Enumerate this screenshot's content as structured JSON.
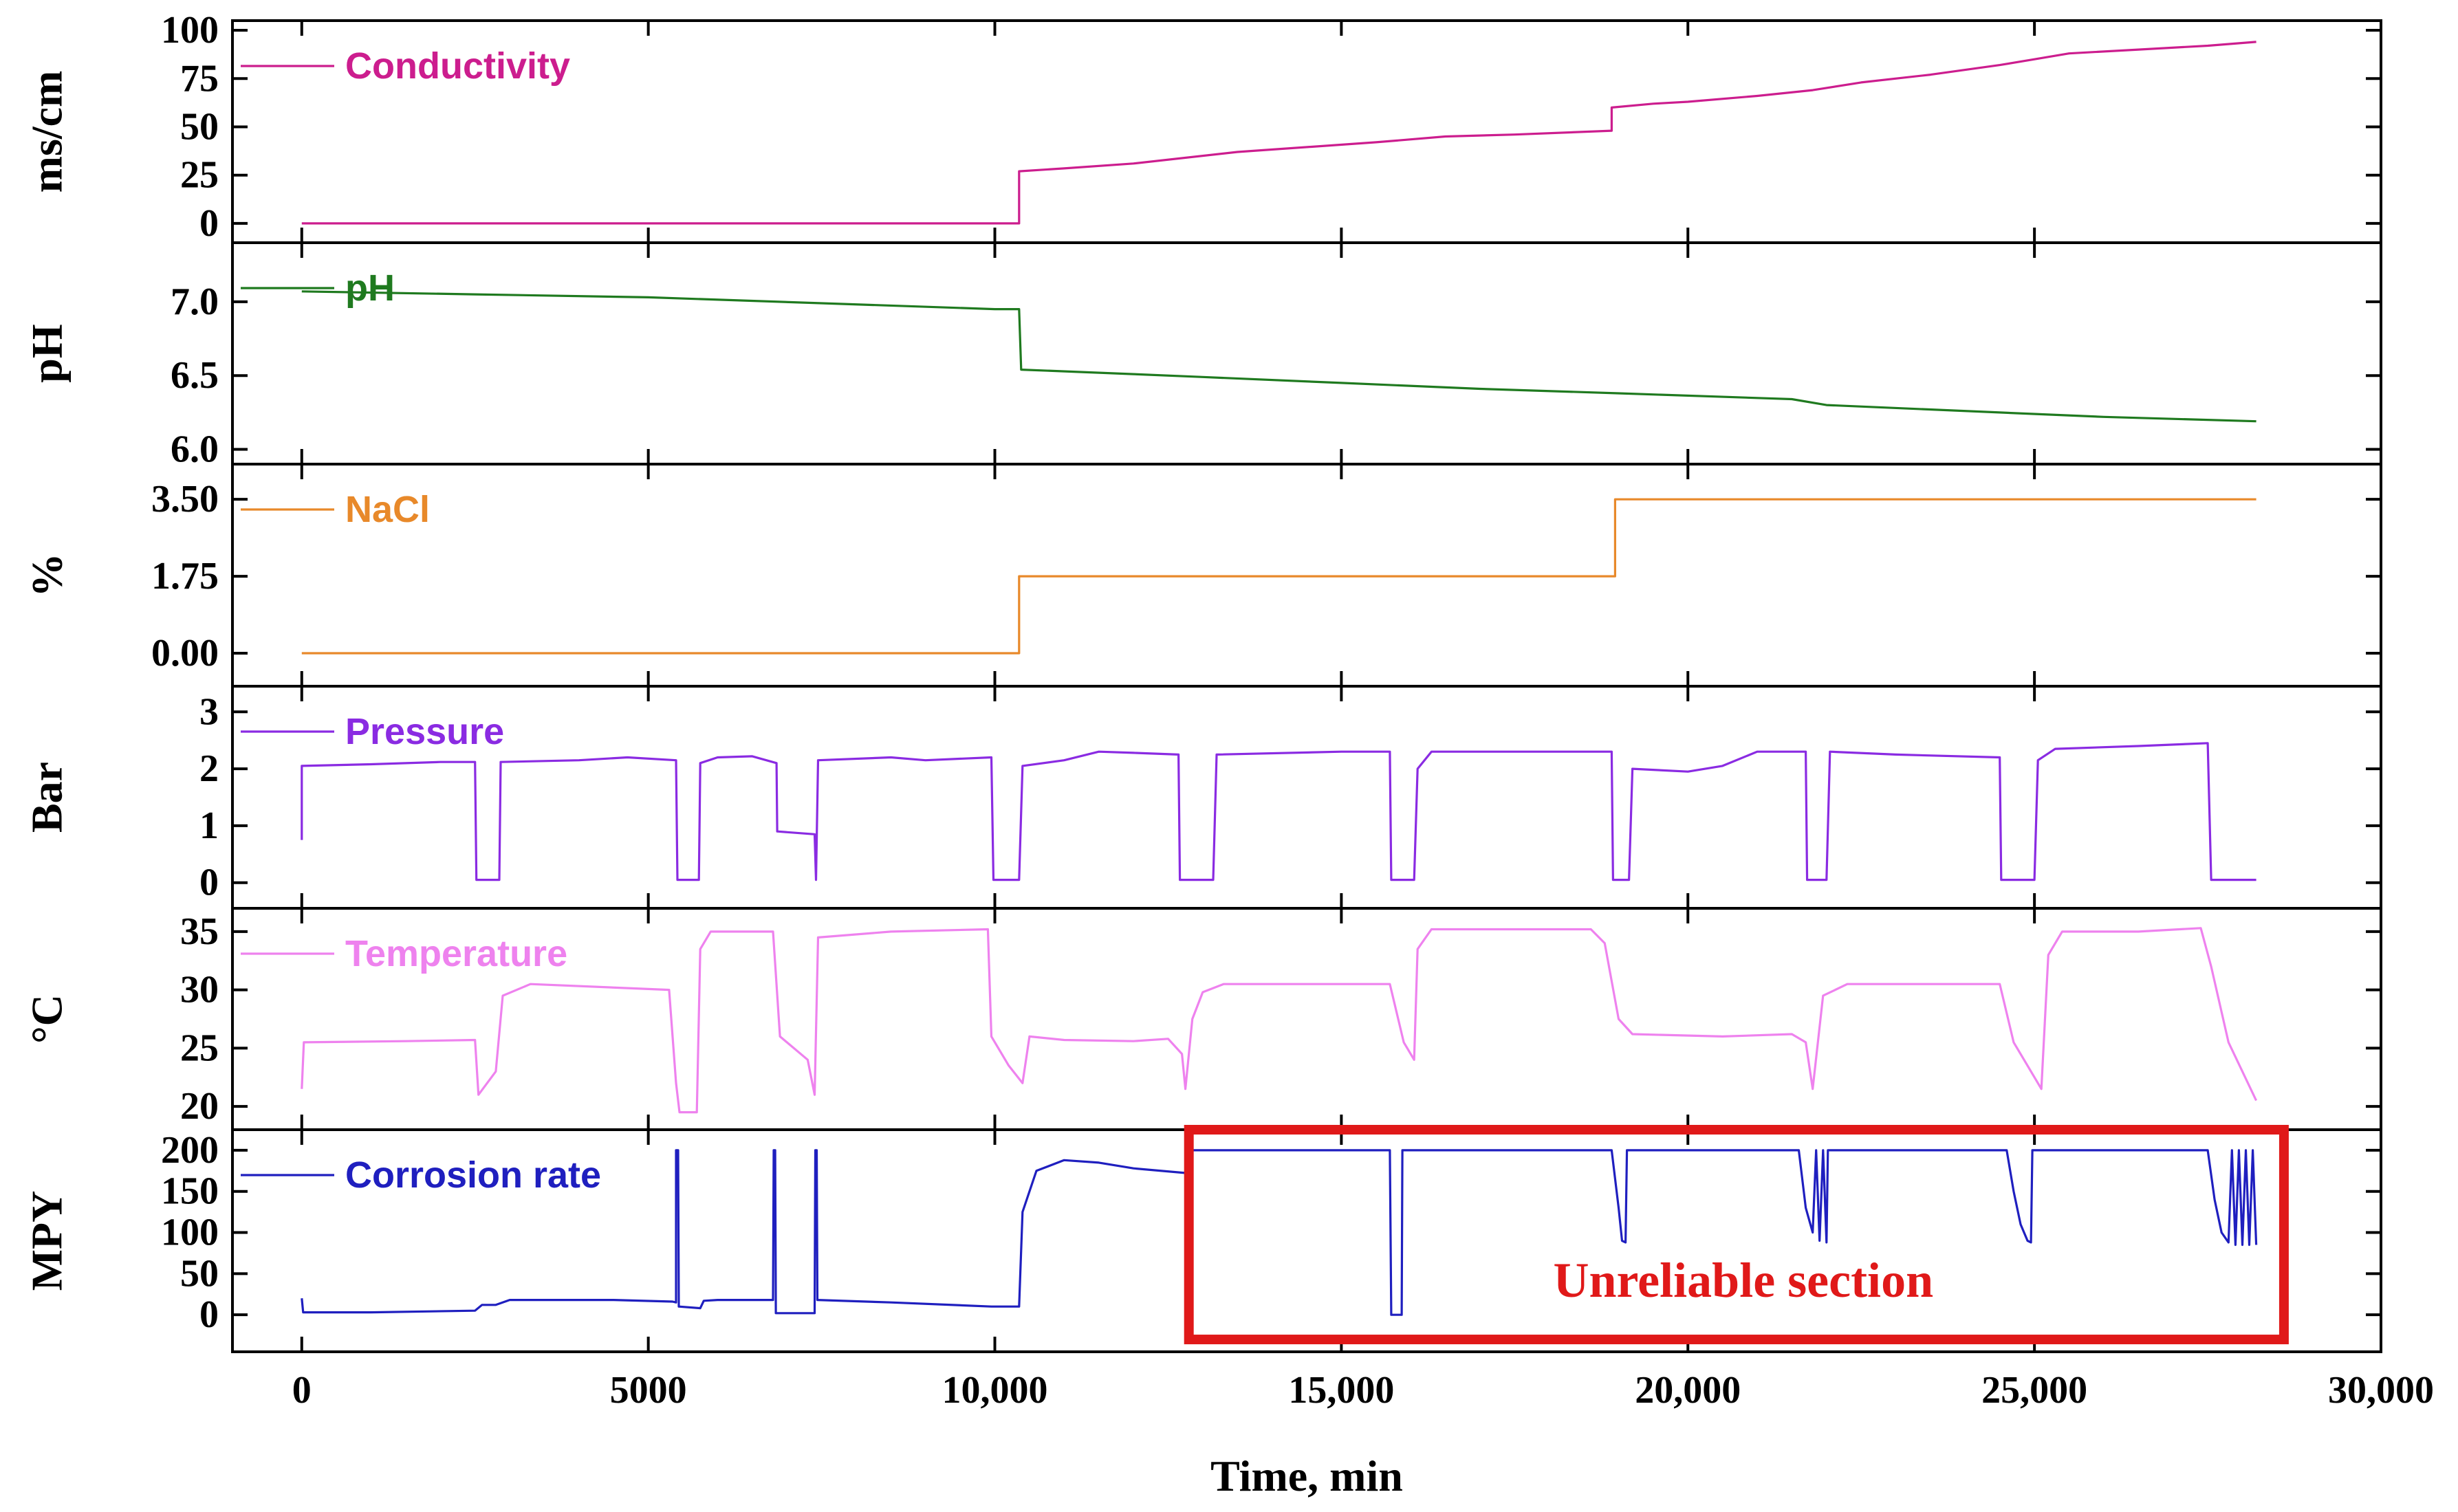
{
  "chart_data": {
    "type": "line",
    "xlabel": "Time, min",
    "xlim": [
      -1000,
      30000
    ],
    "x_ticks": [
      0,
      5000,
      10000,
      15000,
      20000,
      25000,
      30000
    ],
    "x_tick_labels": [
      "0",
      "5000",
      "10,000",
      "15,000",
      "20,000",
      "25,000",
      "30,000"
    ],
    "panels": [
      {
        "key": "conductivity",
        "ylabel": "ms/cm",
        "legend": "Conductivity",
        "color": "#cc1d8e",
        "ylim": [
          -10,
          105
        ],
        "ticks": [
          0,
          25,
          50,
          75,
          100
        ],
        "tick_labels": [
          "0",
          "25",
          "50",
          "75",
          "100"
        ],
        "series": [
          [
            0,
            0
          ],
          [
            10350,
            0
          ],
          [
            10350,
            27
          ],
          [
            11000,
            28.5
          ],
          [
            12000,
            31
          ],
          [
            13500,
            37
          ],
          [
            15500,
            42
          ],
          [
            16500,
            45
          ],
          [
            17500,
            46
          ],
          [
            18900,
            48
          ],
          [
            18900,
            60
          ],
          [
            19500,
            62
          ],
          [
            20000,
            63
          ],
          [
            21000,
            66
          ],
          [
            21800,
            69
          ],
          [
            22500,
            73
          ],
          [
            23500,
            77
          ],
          [
            24500,
            82
          ],
          [
            25000,
            85
          ],
          [
            25500,
            88
          ],
          [
            26500,
            90
          ],
          [
            27500,
            92
          ],
          [
            28200,
            94
          ]
        ]
      },
      {
        "key": "ph",
        "ylabel": "pH",
        "legend": "pH",
        "color": "#1f7a1f",
        "ylim": [
          5.9,
          7.4
        ],
        "ticks": [
          6.0,
          6.5,
          7.0
        ],
        "tick_labels": [
          "6.0",
          "6.5",
          "7.0"
        ],
        "series": [
          [
            0,
            7.07
          ],
          [
            2500,
            7.05
          ],
          [
            5000,
            7.03
          ],
          [
            7500,
            6.99
          ],
          [
            10000,
            6.95
          ],
          [
            10350,
            6.95
          ],
          [
            10380,
            6.54
          ],
          [
            12000,
            6.51
          ],
          [
            13000,
            6.49
          ],
          [
            15000,
            6.45
          ],
          [
            17000,
            6.41
          ],
          [
            19000,
            6.38
          ],
          [
            21500,
            6.34
          ],
          [
            22000,
            6.3
          ],
          [
            24500,
            6.25
          ],
          [
            26000,
            6.22
          ],
          [
            28200,
            6.19
          ]
        ]
      },
      {
        "key": "nacl",
        "ylabel": "%",
        "legend": "NaCl",
        "color": "#e8892a",
        "ylim": [
          -0.75,
          4.3
        ],
        "ticks": [
          0,
          1.75,
          3.5
        ],
        "tick_labels": [
          "0.00",
          "1.75",
          "3.50"
        ],
        "series": [
          [
            0,
            0
          ],
          [
            10350,
            0
          ],
          [
            10350,
            1.75
          ],
          [
            18950,
            1.75
          ],
          [
            18950,
            3.5
          ],
          [
            28200,
            3.5
          ]
        ]
      },
      {
        "key": "pressure",
        "ylabel": "Bar",
        "legend": "Pressure",
        "color": "#8a2be2",
        "ylim": [
          -0.45,
          3.45
        ],
        "ticks": [
          0,
          1,
          2,
          3
        ],
        "tick_labels": [
          "0",
          "1",
          "2",
          "3"
        ],
        "series": [
          [
            0,
            0.75
          ],
          [
            0,
            2.05
          ],
          [
            1000,
            2.08
          ],
          [
            2000,
            2.12
          ],
          [
            2500,
            2.12
          ],
          [
            2520,
            0.05
          ],
          [
            2850,
            0.05
          ],
          [
            2870,
            2.12
          ],
          [
            4000,
            2.15
          ],
          [
            4700,
            2.2
          ],
          [
            5400,
            2.15
          ],
          [
            5420,
            0.05
          ],
          [
            5730,
            0.05
          ],
          [
            5750,
            2.1
          ],
          [
            6000,
            2.2
          ],
          [
            6500,
            2.22
          ],
          [
            6850,
            2.1
          ],
          [
            6860,
            0.9
          ],
          [
            7400,
            0.85
          ],
          [
            7420,
            0.05
          ],
          [
            7450,
            2.15
          ],
          [
            8500,
            2.2
          ],
          [
            9000,
            2.15
          ],
          [
            9950,
            2.2
          ],
          [
            9980,
            0.05
          ],
          [
            10350,
            0.05
          ],
          [
            10400,
            2.05
          ],
          [
            11000,
            2.15
          ],
          [
            11500,
            2.3
          ],
          [
            12000,
            2.28
          ],
          [
            12650,
            2.25
          ],
          [
            12670,
            0.05
          ],
          [
            13150,
            0.05
          ],
          [
            13200,
            2.25
          ],
          [
            15000,
            2.3
          ],
          [
            15700,
            2.3
          ],
          [
            15720,
            0.05
          ],
          [
            16050,
            0.05
          ],
          [
            16100,
            2.0
          ],
          [
            16300,
            2.3
          ],
          [
            17500,
            2.3
          ],
          [
            18900,
            2.3
          ],
          [
            18920,
            0.05
          ],
          [
            19150,
            0.05
          ],
          [
            19200,
            2.0
          ],
          [
            20000,
            1.95
          ],
          [
            20500,
            2.05
          ],
          [
            21000,
            2.3
          ],
          [
            21700,
            2.3
          ],
          [
            21720,
            0.05
          ],
          [
            22000,
            0.05
          ],
          [
            22050,
            2.3
          ],
          [
            23000,
            2.25
          ],
          [
            24500,
            2.2
          ],
          [
            24520,
            0.05
          ],
          [
            25000,
            0.05
          ],
          [
            25050,
            2.15
          ],
          [
            25300,
            2.35
          ],
          [
            26500,
            2.4
          ],
          [
            27500,
            2.45
          ],
          [
            27550,
            0.05
          ],
          [
            28200,
            0.05
          ]
        ]
      },
      {
        "key": "temperature",
        "ylabel": "°C",
        "legend": "Temperature",
        "color": "#ee82ee",
        "ylim": [
          18,
          37
        ],
        "ticks": [
          20,
          25,
          30,
          35
        ],
        "tick_labels": [
          "20",
          "25",
          "30",
          "35"
        ],
        "series": [
          [
            0,
            21.5
          ],
          [
            30,
            25.5
          ],
          [
            1500,
            25.6
          ],
          [
            2500,
            25.7
          ],
          [
            2550,
            21
          ],
          [
            2800,
            23
          ],
          [
            2900,
            29.5
          ],
          [
            3300,
            30.5
          ],
          [
            5300,
            30.0
          ],
          [
            5400,
            22
          ],
          [
            5450,
            19.5
          ],
          [
            5700,
            19.5
          ],
          [
            5750,
            33.5
          ],
          [
            5900,
            35
          ],
          [
            6800,
            35
          ],
          [
            6900,
            26
          ],
          [
            7300,
            24
          ],
          [
            7400,
            21
          ],
          [
            7450,
            34.5
          ],
          [
            8500,
            35
          ],
          [
            9900,
            35.2
          ],
          [
            9950,
            26
          ],
          [
            10200,
            23.5
          ],
          [
            10400,
            22
          ],
          [
            10500,
            26
          ],
          [
            11000,
            25.7
          ],
          [
            12000,
            25.6
          ],
          [
            12500,
            25.8
          ],
          [
            12700,
            24.5
          ],
          [
            12750,
            21.5
          ],
          [
            12850,
            27.5
          ],
          [
            13000,
            29.8
          ],
          [
            13300,
            30.5
          ],
          [
            15700,
            30.5
          ],
          [
            15900,
            25.5
          ],
          [
            16050,
            24
          ],
          [
            16100,
            33.5
          ],
          [
            16300,
            35.2
          ],
          [
            18600,
            35.2
          ],
          [
            18800,
            34
          ],
          [
            19000,
            27.5
          ],
          [
            19200,
            26.2
          ],
          [
            20500,
            26
          ],
          [
            21500,
            26.2
          ],
          [
            21700,
            25.5
          ],
          [
            21800,
            21.5
          ],
          [
            21950,
            29.5
          ],
          [
            22300,
            30.5
          ],
          [
            24500,
            30.5
          ],
          [
            24700,
            25.5
          ],
          [
            25000,
            22.5
          ],
          [
            25100,
            21.5
          ],
          [
            25200,
            33
          ],
          [
            25400,
            35
          ],
          [
            26500,
            35
          ],
          [
            27400,
            35.3
          ],
          [
            27550,
            32
          ],
          [
            27800,
            25.5
          ],
          [
            28200,
            20.5
          ]
        ]
      },
      {
        "key": "corrosion",
        "ylabel": "MPY",
        "legend": "Corrosion rate",
        "color": "#1f1fbf",
        "ylim": [
          -45,
          225
        ],
        "ticks": [
          0,
          50,
          100,
          150,
          200
        ],
        "tick_labels": [
          "0",
          "50",
          "100",
          "150",
          "200"
        ],
        "series": [
          [
            0,
            20
          ],
          [
            20,
            3
          ],
          [
            1000,
            3
          ],
          [
            2500,
            5
          ],
          [
            2600,
            12
          ],
          [
            2800,
            12
          ],
          [
            3000,
            18
          ],
          [
            4500,
            18
          ],
          [
            5350,
            16
          ],
          [
            5400,
            15
          ],
          [
            5400,
            200
          ],
          [
            5430,
            200
          ],
          [
            5440,
            10
          ],
          [
            5750,
            8
          ],
          [
            5800,
            17
          ],
          [
            6000,
            18
          ],
          [
            6800,
            18
          ],
          [
            6810,
            200
          ],
          [
            6830,
            200
          ],
          [
            6840,
            2
          ],
          [
            7400,
            2
          ],
          [
            7410,
            200
          ],
          [
            7430,
            200
          ],
          [
            7440,
            18
          ],
          [
            8500,
            15
          ],
          [
            9950,
            10
          ],
          [
            10350,
            10
          ],
          [
            10400,
            125
          ],
          [
            10600,
            175
          ],
          [
            11000,
            188
          ],
          [
            11500,
            185
          ],
          [
            12000,
            178
          ],
          [
            12800,
            172
          ],
          [
            12850,
            200
          ],
          [
            13000,
            200
          ],
          [
            15000,
            200
          ],
          [
            15700,
            200
          ],
          [
            15720,
            0
          ],
          [
            15870,
            0
          ],
          [
            15880,
            200
          ],
          [
            18900,
            200
          ],
          [
            19000,
            130
          ],
          [
            19050,
            90
          ],
          [
            19100,
            88
          ],
          [
            19120,
            200
          ],
          [
            21600,
            200
          ],
          [
            21700,
            130
          ],
          [
            21800,
            100
          ],
          [
            21850,
            200
          ],
          [
            21900,
            90
          ],
          [
            21950,
            200
          ],
          [
            22000,
            88
          ],
          [
            22020,
            200
          ],
          [
            24600,
            200
          ],
          [
            24700,
            150
          ],
          [
            24800,
            110
          ],
          [
            24900,
            90
          ],
          [
            24950,
            88
          ],
          [
            24970,
            200
          ],
          [
            27500,
            200
          ],
          [
            27600,
            140
          ],
          [
            27700,
            100
          ],
          [
            27800,
            88
          ],
          [
            27850,
            200
          ],
          [
            27900,
            85
          ],
          [
            27950,
            200
          ],
          [
            28000,
            85
          ],
          [
            28050,
            200
          ],
          [
            28100,
            85
          ],
          [
            28150,
            200
          ],
          [
            28200,
            85
          ]
        ]
      }
    ],
    "annotation": {
      "text": "Unreliable section",
      "x_start": 12800,
      "x_end": 28600,
      "y_top": 225,
      "y_bottom": -30,
      "color": "#e01919"
    }
  }
}
